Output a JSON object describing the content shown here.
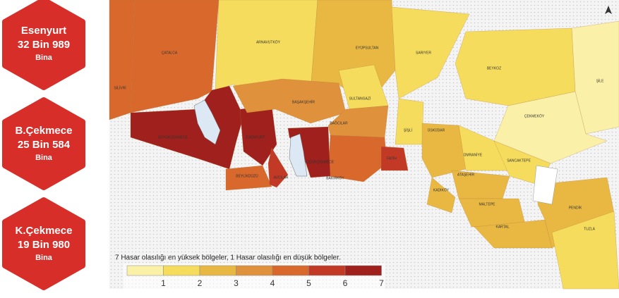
{
  "stats": [
    {
      "name": "Esenyurt",
      "count": "32 Bin 989",
      "unit": "Bina"
    },
    {
      "name": "B.Çekmece",
      "count": "25 Bin 584",
      "unit": "Bina"
    },
    {
      "name": "K.Çekmece",
      "count": "19 Bin 980",
      "unit": "Bina"
    }
  ],
  "legend": {
    "caption": "7 Hasar olasılığı en yüksek bölgeler, 1 Hasar olasılığı en düşük bölgeler.",
    "levels": [
      1,
      2,
      3,
      4,
      5,
      6,
      7
    ],
    "colors": [
      "#fbf0a8",
      "#f5dc5c",
      "#e8b843",
      "#e0913b",
      "#d9682c",
      "#c23a26",
      "#9f201c"
    ]
  },
  "districts": [
    {
      "label": "SİLİVRİ",
      "level": 5
    },
    {
      "label": "ÇATALCA",
      "level": 5
    },
    {
      "label": "ARNAVUTKÖY",
      "level": 2
    },
    {
      "label": "EYÜPSULTAN",
      "level": 3
    },
    {
      "label": "SARIYER",
      "level": 2
    },
    {
      "label": "BÜYÜKÇEKMECE",
      "level": 7
    },
    {
      "label": "ESENYURT",
      "level": 7
    },
    {
      "label": "BAŞAKŞEHİR",
      "level": 4
    },
    {
      "label": "SULTANGAZİ",
      "level": 2
    },
    {
      "label": "BAĞCILAR",
      "level": 4
    },
    {
      "label": "BEYLİKDÜZÜ",
      "level": 5
    },
    {
      "label": "AVCILAR",
      "level": 6
    },
    {
      "label": "BAKIRKÖY",
      "level": 5
    },
    {
      "label": "ŞİŞLİ",
      "level": 2
    },
    {
      "label": "FATİH",
      "level": 6
    },
    {
      "label": "BEYKOZ",
      "level": 2
    },
    {
      "label": "ŞİLE",
      "level": 1
    },
    {
      "label": "ÇEKMEKÖY",
      "level": 1
    },
    {
      "label": "ÜSKÜDAR",
      "level": 3
    },
    {
      "label": "ÜMRANİYE",
      "level": 2
    },
    {
      "label": "SANCAKTEPE",
      "level": 2
    },
    {
      "label": "ATAŞEHİR",
      "level": 3
    },
    {
      "label": "KADIKÖY",
      "level": 3
    },
    {
      "label": "MALTEPE",
      "level": 3
    },
    {
      "label": "KARTAL",
      "level": 3
    },
    {
      "label": "PENDİK",
      "level": 3
    },
    {
      "label": "TUZLA",
      "level": 2
    },
    {
      "label": "KÜÇÜKÇEKMECE",
      "level": 7
    }
  ]
}
